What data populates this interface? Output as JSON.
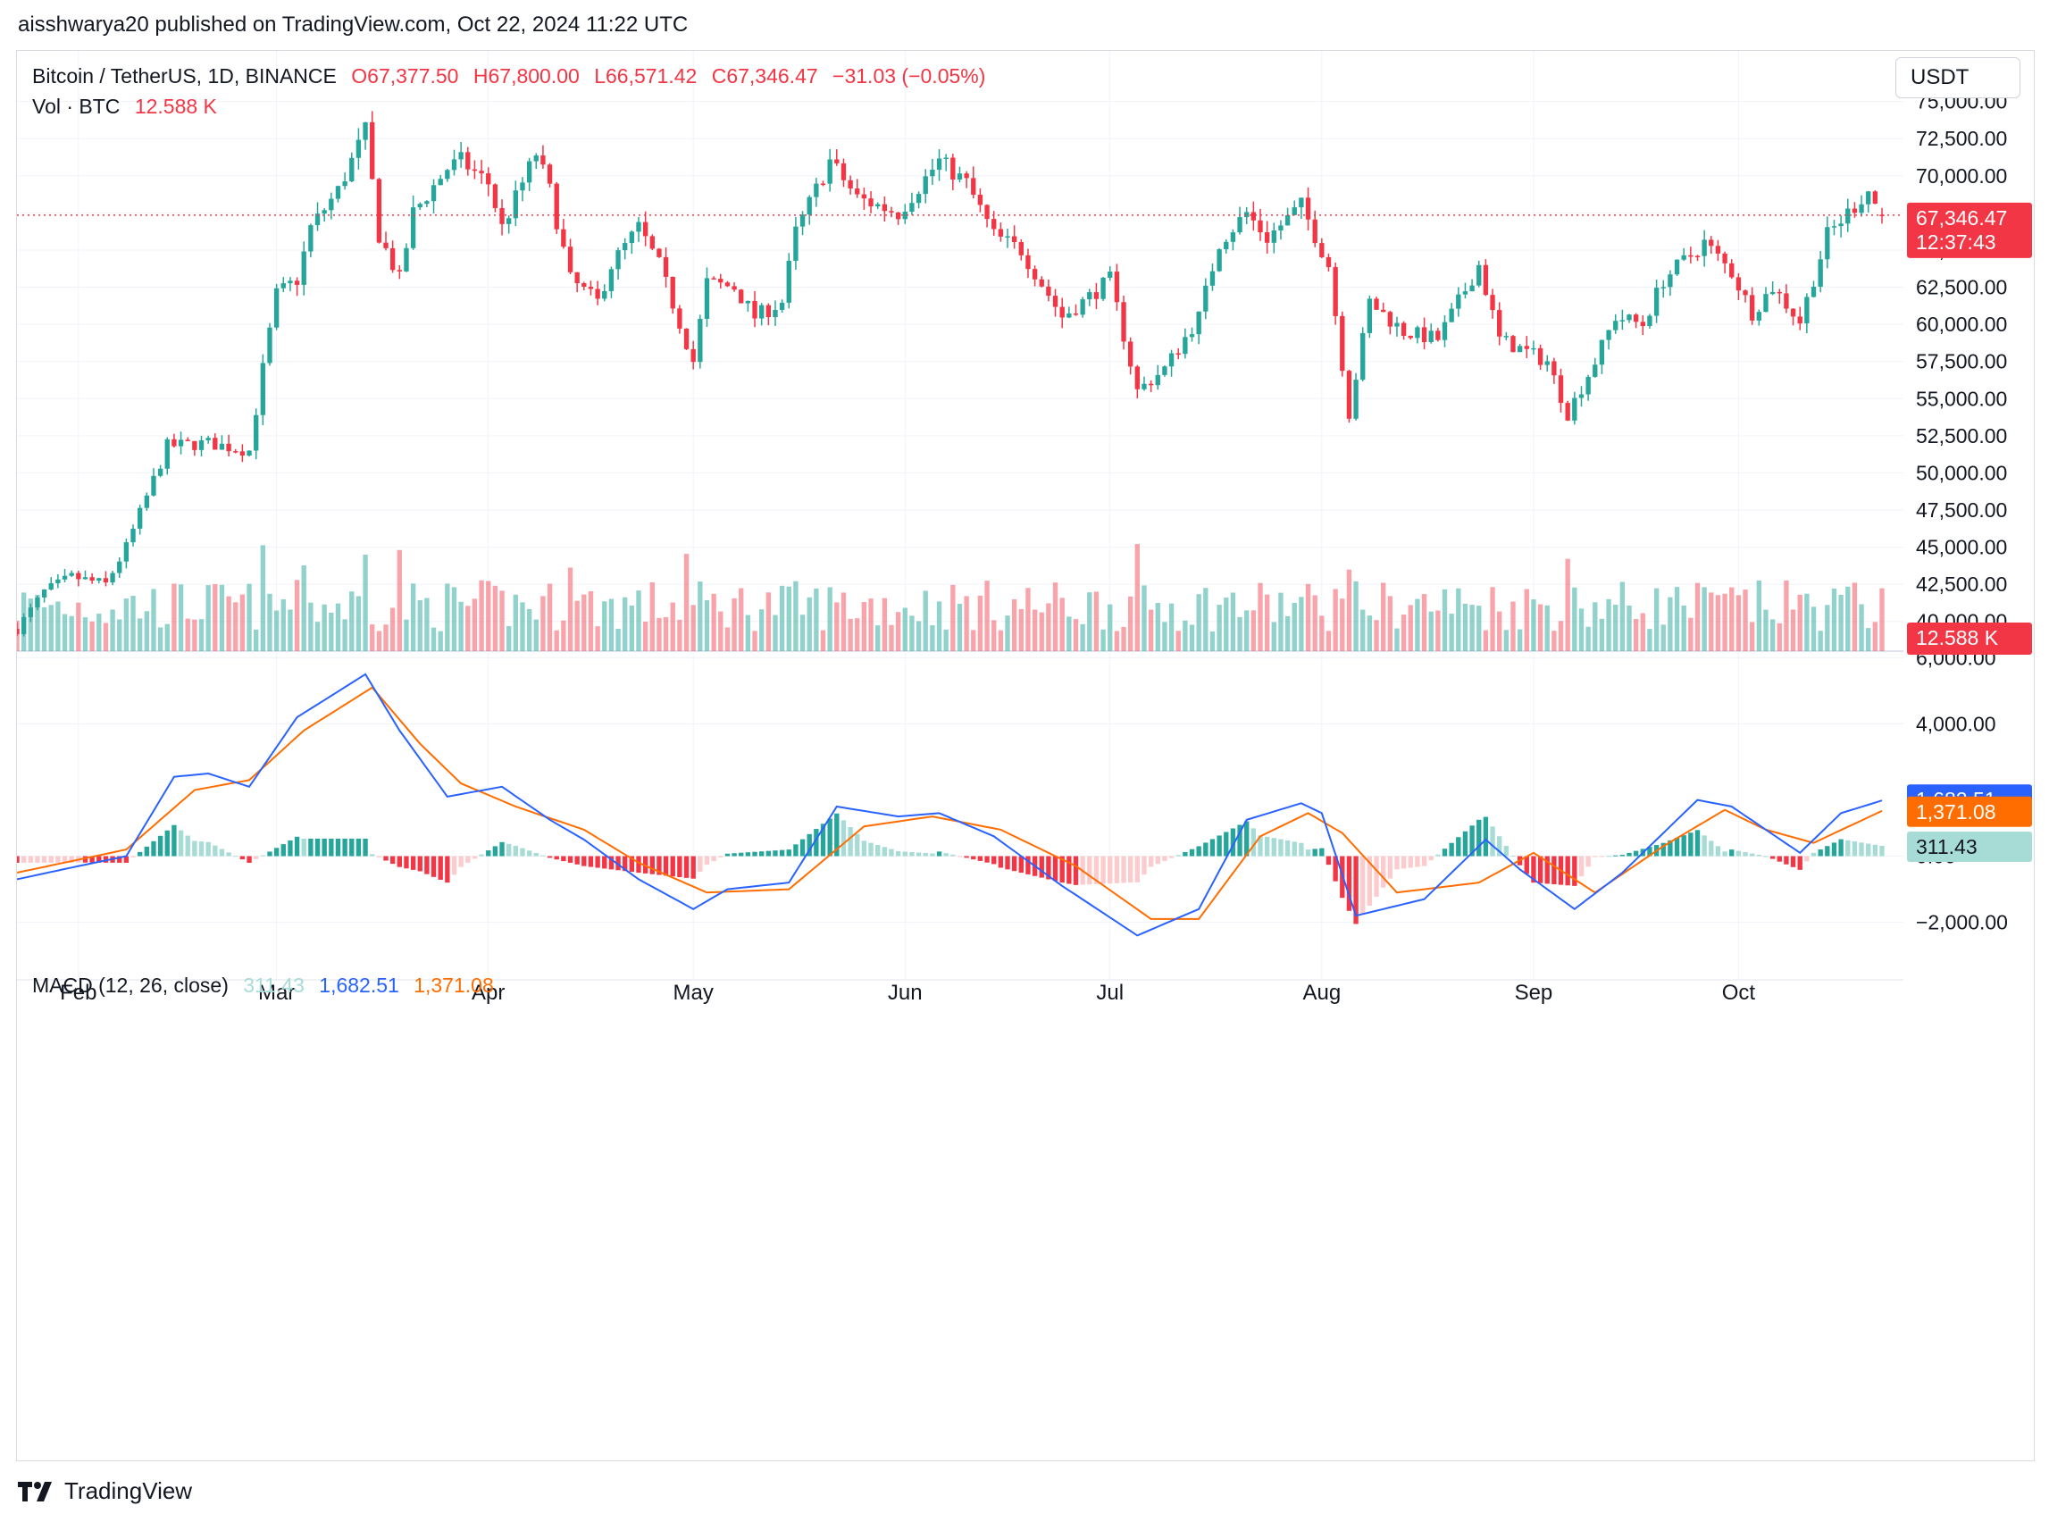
{
  "header": {
    "publisher_text": "aisshwarya20 published on TradingView.com, Oct 22, 2024 11:22 UTC"
  },
  "legend": {
    "symbol": "Bitcoin / TetherUS, 1D, BINANCE",
    "open": "O67,377.50",
    "high": "H67,800.00",
    "low": "L66,571.42",
    "close": "C67,346.47",
    "change": "−31.03 (−0.05%)",
    "vol_label": "Vol · BTC",
    "vol_value": "12.588 K"
  },
  "macd_legend": {
    "label": "MACD (12, 26, close)",
    "hist": "311.43",
    "macd": "1,682.51",
    "signal": "1,371.08"
  },
  "currency_selector": "USDT",
  "price_tags": {
    "last": "67,346.47",
    "countdown": "12:37:43",
    "volume": "12.588 K",
    "macd": "1,682.51",
    "signal": "1,371.08",
    "hist": "311.43"
  },
  "branding": "TradingView",
  "colors": {
    "up": "#26a69a",
    "down": "#f23645",
    "macd": "#2962ff",
    "signal": "#ff6d00",
    "hist_up": "#26a69a",
    "hist_down": "#f23645"
  },
  "chart_data": [
    {
      "type": "candlestick",
      "title": "Bitcoin / TetherUS, 1D, BINANCE",
      "ylim": [
        38000,
        76000
      ],
      "yticks": [
        "75,000.00",
        "72,500.00",
        "70,000.00",
        "67,500.00",
        "65,000.00",
        "62,500.00",
        "60,000.00",
        "57,500.00",
        "55,000.00",
        "52,500.00",
        "50,000.00",
        "47,500.00",
        "45,000.00",
        "42,500.00",
        "40,000.00"
      ],
      "ytick_values": [
        75000,
        72500,
        70000,
        67500,
        65000,
        62500,
        60000,
        57500,
        55000,
        52500,
        50000,
        47500,
        45000,
        42500,
        40000
      ],
      "x_ticks": [
        "Feb",
        "Mar",
        "Apr",
        "May",
        "Jun",
        "Jul",
        "Aug",
        "Sep",
        "Oct"
      ],
      "last_price": 67346.47,
      "anchors": [
        [
          "2024-01-23",
          39500
        ],
        [
          "2024-01-27",
          42000
        ],
        [
          "2024-01-31",
          43000
        ],
        [
          "2024-02-05",
          42500
        ],
        [
          "2024-02-08",
          45000
        ],
        [
          "2024-02-14",
          51800
        ],
        [
          "2024-02-20",
          52000
        ],
        [
          "2024-02-26",
          51500
        ],
        [
          "2024-02-28",
          57000
        ],
        [
          "2024-03-01",
          62000
        ],
        [
          "2024-03-04",
          63000
        ],
        [
          "2024-03-06",
          66500
        ],
        [
          "2024-03-10",
          69000
        ],
        [
          "2024-03-14",
          73000
        ],
        [
          "2024-03-16",
          66000
        ],
        [
          "2024-03-19",
          63000
        ],
        [
          "2024-03-21",
          67500
        ],
        [
          "2024-03-26",
          70500
        ],
        [
          "2024-03-28",
          71000
        ],
        [
          "2024-04-01",
          69500
        ],
        [
          "2024-04-03",
          66500
        ],
        [
          "2024-04-08",
          71500
        ],
        [
          "2024-04-10",
          69000
        ],
        [
          "2024-04-13",
          63000
        ],
        [
          "2024-04-17",
          61500
        ],
        [
          "2024-04-19",
          64000
        ],
        [
          "2024-04-23",
          66500
        ],
        [
          "2024-04-26",
          64000
        ],
        [
          "2024-05-01",
          57500
        ],
        [
          "2024-05-03",
          62800
        ],
        [
          "2024-05-07",
          62500
        ],
        [
          "2024-05-10",
          60500
        ],
        [
          "2024-05-14",
          61500
        ],
        [
          "2024-05-16",
          66200
        ],
        [
          "2024-05-21",
          71000
        ],
        [
          "2024-05-25",
          68500
        ],
        [
          "2024-05-31",
          67500
        ],
        [
          "2024-06-06",
          71000
        ],
        [
          "2024-06-10",
          69500
        ],
        [
          "2024-06-14",
          66000
        ],
        [
          "2024-06-18",
          65000
        ],
        [
          "2024-06-24",
          60500
        ],
        [
          "2024-06-27",
          61500
        ],
        [
          "2024-07-01",
          63000
        ],
        [
          "2024-07-05",
          55500
        ],
        [
          "2024-07-09",
          57000
        ],
        [
          "2024-07-14",
          60500
        ],
        [
          "2024-07-17",
          65500
        ],
        [
          "2024-07-21",
          67500
        ],
        [
          "2024-07-24",
          65800
        ],
        [
          "2024-07-29",
          68000
        ],
        [
          "2024-08-02",
          64000
        ],
        [
          "2024-08-05",
          54000
        ],
        [
          "2024-08-08",
          61500
        ],
        [
          "2024-08-13",
          59500
        ],
        [
          "2024-08-18",
          59000
        ],
        [
          "2024-08-24",
          64000
        ],
        [
          "2024-08-27",
          59000
        ],
        [
          "2024-09-03",
          57500
        ],
        [
          "2024-09-06",
          54000
        ],
        [
          "2024-09-10",
          57500
        ],
        [
          "2024-09-13",
          60500
        ],
        [
          "2024-09-17",
          60000
        ],
        [
          "2024-09-20",
          63000
        ],
        [
          "2024-09-26",
          65500
        ],
        [
          "2024-09-30",
          63500
        ],
        [
          "2024-10-03",
          60800
        ],
        [
          "2024-10-06",
          62500
        ],
        [
          "2024-10-10",
          60200
        ],
        [
          "2024-10-14",
          66000
        ],
        [
          "2024-10-17",
          67500
        ],
        [
          "2024-10-20",
          69000
        ],
        [
          "2024-10-22",
          67346.47
        ]
      ]
    },
    {
      "type": "bar",
      "title": "Vol · BTC",
      "last_value": 12588,
      "spike_dates": [
        "2024-02-28",
        "2024-03-05",
        "2024-03-14",
        "2024-03-19",
        "2024-04-13",
        "2024-04-30",
        "2024-07-05",
        "2024-08-05",
        "2024-09-06"
      ]
    },
    {
      "type": "line",
      "title": "MACD (12, 26, close)",
      "ylim": [
        -3200,
        6200
      ],
      "yticks": [
        "6,000.00",
        "4,000.00",
        "0.00",
        "−2,000.00"
      ],
      "ytick_values": [
        6000,
        4000,
        0,
        -2000
      ],
      "series": [
        {
          "name": "MACD",
          "anchors": [
            [
              "2024-01-23",
              -700
            ],
            [
              "2024-02-01",
              -300
            ],
            [
              "2024-02-08",
              0
            ],
            [
              "2024-02-15",
              2400
            ],
            [
              "2024-02-20",
              2500
            ],
            [
              "2024-02-26",
              2100
            ],
            [
              "2024-03-04",
              4200
            ],
            [
              "2024-03-14",
              5500
            ],
            [
              "2024-03-19",
              3800
            ],
            [
              "2024-03-26",
              1800
            ],
            [
              "2024-04-03",
              2100
            ],
            [
              "2024-04-10",
              1100
            ],
            [
              "2024-04-15",
              500
            ],
            [
              "2024-04-23",
              -700
            ],
            [
              "2024-05-01",
              -1600
            ],
            [
              "2024-05-06",
              -1000
            ],
            [
              "2024-05-15",
              -800
            ],
            [
              "2024-05-22",
              1500
            ],
            [
              "2024-05-31",
              1200
            ],
            [
              "2024-06-06",
              1300
            ],
            [
              "2024-06-14",
              600
            ],
            [
              "2024-06-24",
              -900
            ],
            [
              "2024-07-05",
              -2400
            ],
            [
              "2024-07-14",
              -1600
            ],
            [
              "2024-07-21",
              1100
            ],
            [
              "2024-07-29",
              1600
            ],
            [
              "2024-08-01",
              1300
            ],
            [
              "2024-08-06",
              -1800
            ],
            [
              "2024-08-16",
              -1300
            ],
            [
              "2024-08-25",
              500
            ],
            [
              "2024-08-30",
              -400
            ],
            [
              "2024-09-07",
              -1600
            ],
            [
              "2024-09-14",
              -500
            ],
            [
              "2024-09-25",
              1700
            ],
            [
              "2024-09-30",
              1500
            ],
            [
              "2024-10-10",
              100
            ],
            [
              "2024-10-16",
              1300
            ],
            [
              "2024-10-22",
              1682.51
            ]
          ]
        },
        {
          "name": "Signal",
          "anchors": [
            [
              "2024-01-23",
              -500
            ],
            [
              "2024-02-08",
              200
            ],
            [
              "2024-02-18",
              2000
            ],
            [
              "2024-02-26",
              2300
            ],
            [
              "2024-03-05",
              3800
            ],
            [
              "2024-03-15",
              5100
            ],
            [
              "2024-03-22",
              3400
            ],
            [
              "2024-03-28",
              2200
            ],
            [
              "2024-04-05",
              1500
            ],
            [
              "2024-04-15",
              800
            ],
            [
              "2024-04-23",
              -200
            ],
            [
              "2024-05-03",
              -1100
            ],
            [
              "2024-05-15",
              -1000
            ],
            [
              "2024-05-26",
              900
            ],
            [
              "2024-06-05",
              1200
            ],
            [
              "2024-06-15",
              800
            ],
            [
              "2024-06-26",
              -300
            ],
            [
              "2024-07-07",
              -1900
            ],
            [
              "2024-07-14",
              -1900
            ],
            [
              "2024-07-23",
              600
            ],
            [
              "2024-07-30",
              1300
            ],
            [
              "2024-08-04",
              700
            ],
            [
              "2024-08-12",
              -1100
            ],
            [
              "2024-08-24",
              -800
            ],
            [
              "2024-09-01",
              100
            ],
            [
              "2024-09-10",
              -1100
            ],
            [
              "2024-09-20",
              300
            ],
            [
              "2024-09-29",
              1400
            ],
            [
              "2024-10-05",
              800
            ],
            [
              "2024-10-12",
              400
            ],
            [
              "2024-10-22",
              1371.08
            ]
          ]
        }
      ]
    }
  ]
}
